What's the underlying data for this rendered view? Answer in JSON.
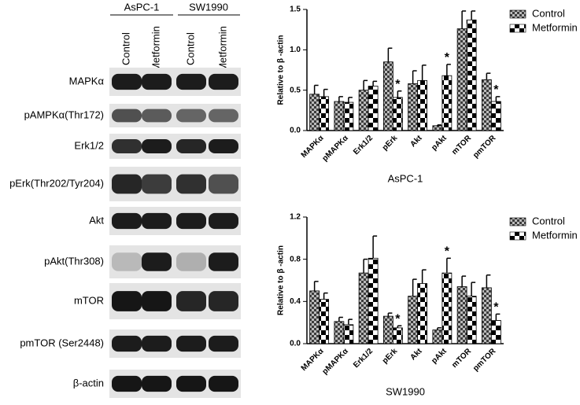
{
  "blot": {
    "cell_lines": [
      "AsPC-1",
      "SW1990"
    ],
    "lanes": [
      "Control",
      "Metformin",
      "Control",
      "Metformin"
    ],
    "rows": [
      "MAPKα",
      "pAMPKα(Thr172)",
      "Erk1/2",
      "pErk(Thr202/Tyr204)",
      "Akt",
      "pAkt(Thr308)",
      "mTOR",
      "pmTOR (Ser2448)",
      "β-actin"
    ]
  },
  "chart_data": [
    {
      "type": "bar",
      "xlabel": "AsPC-1",
      "ylabel": "Relative to β -actin",
      "categories": [
        "MAPKα",
        "pMAPKα",
        "Erk1/2",
        "pErk",
        "Akt",
        "pAkt",
        "mTOR",
        "pmTOR"
      ],
      "series": [
        {
          "name": "Control",
          "color": "#3c3c3c",
          "values": [
            0.45,
            0.36,
            0.5,
            0.85,
            0.58,
            0.06,
            1.26,
            0.63
          ],
          "errors": [
            0.11,
            0.06,
            0.12,
            0.17,
            0.16,
            0.01,
            0.22,
            0.08
          ]
        },
        {
          "name": "Metformin",
          "color": "#000000",
          "values": [
            0.42,
            0.35,
            0.55,
            0.41,
            0.62,
            0.68,
            1.37,
            0.36
          ],
          "errors": [
            0.09,
            0.06,
            0.06,
            0.08,
            0.19,
            0.14,
            0.11,
            0.06
          ]
        }
      ],
      "ylim": [
        0,
        1.5
      ],
      "yticks": [
        {
          "value": 0,
          "label": "0.0"
        },
        {
          "value": 0.5,
          "label": "0.5"
        },
        {
          "value": 1,
          "label": "1.0"
        },
        {
          "value": 1.5,
          "label": "1.5"
        }
      ],
      "annotations": [
        {
          "text": "*",
          "category": "pErk",
          "series": "Metformin"
        },
        {
          "text": "*",
          "category": "pAkt",
          "series": "Metformin"
        },
        {
          "text": "*",
          "category": "pmTOR",
          "series": "Metformin"
        }
      ],
      "legend": "outside right"
    },
    {
      "type": "bar",
      "xlabel": "SW1990",
      "ylabel": "Relative to β -actin",
      "categories": [
        "MAPKα",
        "pMAPKα",
        "Erk1/2",
        "pErk",
        "Akt",
        "pAkt",
        "mTOR",
        "pmTOR"
      ],
      "series": [
        {
          "name": "Control",
          "color": "#3c3c3c",
          "values": [
            0.5,
            0.21,
            0.67,
            0.26,
            0.45,
            0.13,
            0.54,
            0.53
          ],
          "errors": [
            0.09,
            0.04,
            0.13,
            0.03,
            0.16,
            0.02,
            0.1,
            0.12
          ]
        },
        {
          "name": "Metformin",
          "color": "#000000",
          "values": [
            0.42,
            0.18,
            0.81,
            0.15,
            0.57,
            0.67,
            0.45,
            0.22
          ],
          "errors": [
            0.06,
            0.05,
            0.21,
            0.02,
            0.13,
            0.14,
            0.13,
            0.06
          ]
        }
      ],
      "ylim": [
        0,
        1.2
      ],
      "yticks": [
        {
          "value": 0,
          "label": "0.0"
        },
        {
          "value": 0.4,
          "label": "0.4"
        },
        {
          "value": 0.8,
          "label": "0.8"
        },
        {
          "value": 1.2,
          "label": "1.2"
        }
      ],
      "annotations": [
        {
          "text": "*",
          "category": "pErk",
          "series": "Metformin"
        },
        {
          "text": "*",
          "category": "pAkt",
          "series": "Metformin"
        },
        {
          "text": "*",
          "category": "pmTOR",
          "series": "Metformin"
        }
      ],
      "legend": "outside right"
    }
  ]
}
